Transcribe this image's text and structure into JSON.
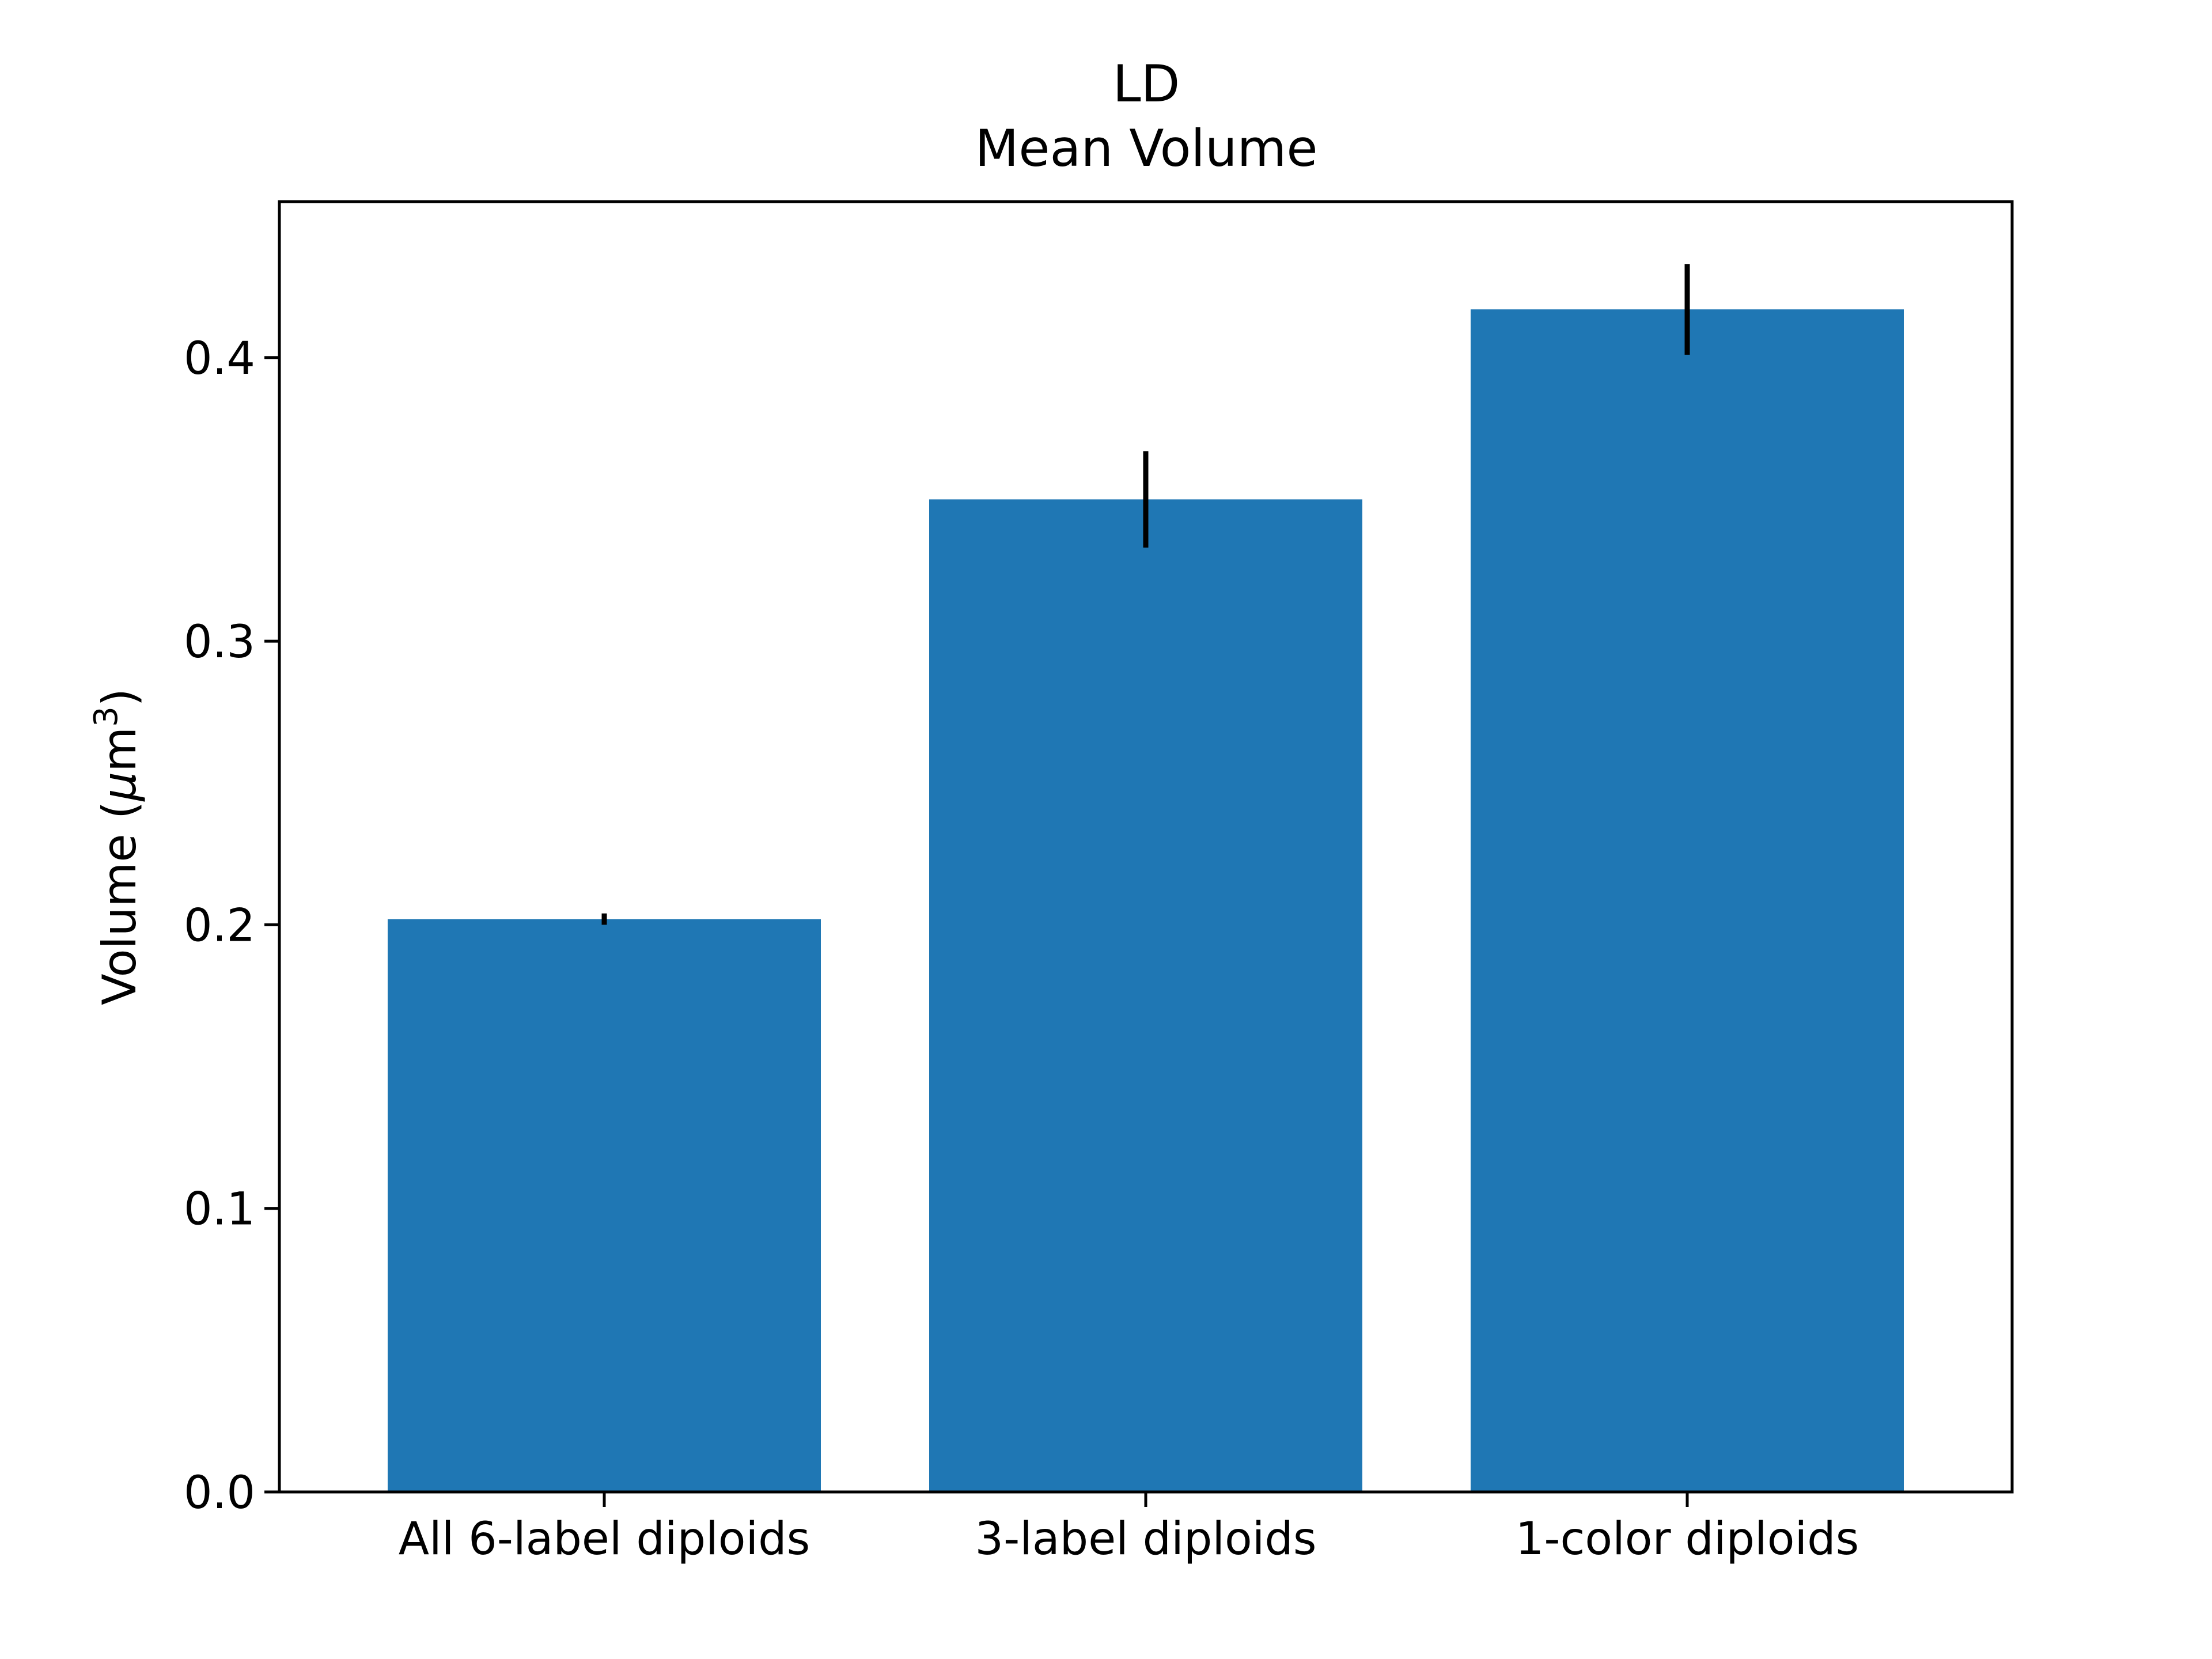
{
  "chart_data": {
    "type": "bar",
    "title": "LD",
    "subtitle": "Mean Volume",
    "xlabel": "",
    "ylabel": "Volume (μm³)",
    "ylabel_parts": {
      "prefix": "Volume (",
      "mu": "μ",
      "m": "m",
      "sup": "3",
      "suffix": ")"
    },
    "categories": [
      "All 6-label diploids",
      "3-label diploids",
      "1-color diploids"
    ],
    "values": [
      0.202,
      0.35,
      0.417
    ],
    "errors": [
      0.002,
      0.017,
      0.016
    ],
    "ylim": [
      0,
      0.455
    ],
    "yticks": [
      0.0,
      0.1,
      0.2,
      0.3,
      0.4
    ],
    "ytick_labels": [
      "0.0",
      "0.1",
      "0.2",
      "0.3",
      "0.4"
    ],
    "bar_color": "#1f77b4",
    "error_color": "#000000",
    "grid": false,
    "legend": "none"
  }
}
